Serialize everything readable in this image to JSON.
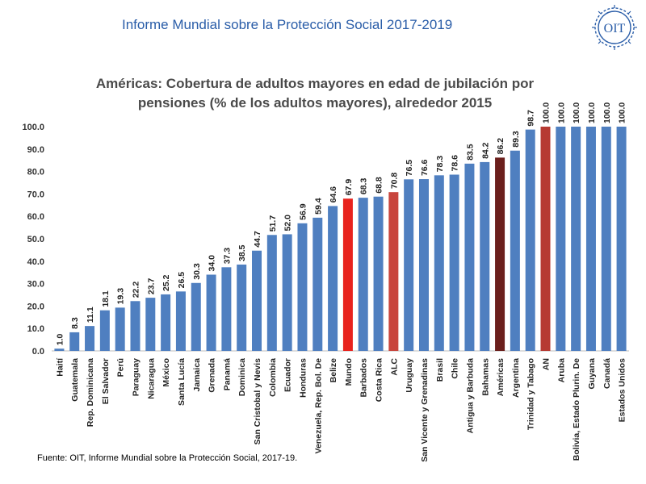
{
  "header": {
    "title": "Informe Mundial sobre la Protección Social 2017-2019",
    "logo_text": "OIT"
  },
  "chart_data": {
    "type": "bar",
    "title_line1": "Américas: Cobertura de adultos mayores en edad de jubilación por",
    "title_line2": "pensiones (% de los adultos mayores), alrededor 2015",
    "ylim": [
      0,
      100
    ],
    "yticks": [
      0.0,
      10.0,
      20.0,
      30.0,
      40.0,
      50.0,
      60.0,
      70.0,
      80.0,
      90.0,
      100.0
    ],
    "categories": [
      "Haití",
      "Guatemala",
      "Rep. Dominicana",
      "El Salvador",
      "Perú",
      "Paraguay",
      "Nicaragua",
      "México",
      "Santa Lucía",
      "Jamaica",
      "Grenada",
      "Panamá",
      "Dominica",
      "San Cristobal y Nevis",
      "Colombia",
      "Ecuador",
      "Honduras",
      "Venezuela, Rep. Bol. De",
      "Belize",
      "Mundo",
      "Barbados",
      "Costa Rica",
      "ALC",
      "Uruguay",
      "San Vicente y Grenadinas",
      "Brasil",
      "Chile",
      "Antigua y Barbuda",
      "Bahamas",
      "Américas",
      "Argentina",
      "Trinidad y Tabago",
      "AN",
      "Aruba",
      "Bolivia, Estado Plurin. De",
      "Guyana",
      "Canadá",
      "Estados Unidos"
    ],
    "values": [
      1.0,
      8.3,
      11.1,
      18.1,
      19.3,
      22.2,
      23.7,
      25.2,
      26.5,
      30.3,
      34.0,
      37.3,
      38.5,
      44.7,
      51.7,
      52.0,
      56.9,
      59.4,
      64.6,
      67.9,
      68.3,
      68.8,
      70.8,
      76.5,
      76.6,
      78.3,
      78.6,
      83.5,
      84.2,
      86.2,
      89.3,
      98.7,
      100.0,
      100.0,
      100.0,
      100.0,
      100.0,
      100.0
    ],
    "value_labels": [
      "1.0",
      "8.3",
      "11.1",
      "18.1",
      "19.3",
      "22.2",
      "23.7",
      "25.2",
      "26.5",
      "30.3",
      "34.0",
      "37.3",
      "38.5",
      "44.7",
      "51.7",
      "52.0",
      "56.9",
      "59.4",
      "64.6",
      "67.9",
      "68.3",
      "68.8",
      "70.8",
      "76.5",
      "76.6",
      "78.3",
      "78.6",
      "83.5",
      "84.2",
      "86.2",
      "89.3",
      "98.7",
      "100.0",
      "100.0",
      "100.0",
      "100.0",
      "100.0",
      "100.0"
    ],
    "colors": {
      "default": "#4f7fc0",
      "Mundo": "#e8231e",
      "ALC": "#c8453d",
      "Américas": "#6b1f1c",
      "AN": "#b63a32"
    },
    "grid": false,
    "legend": "none"
  },
  "source": "Fuente: OIT, Informe Mundial sobre la Protección Social, 2017-19."
}
